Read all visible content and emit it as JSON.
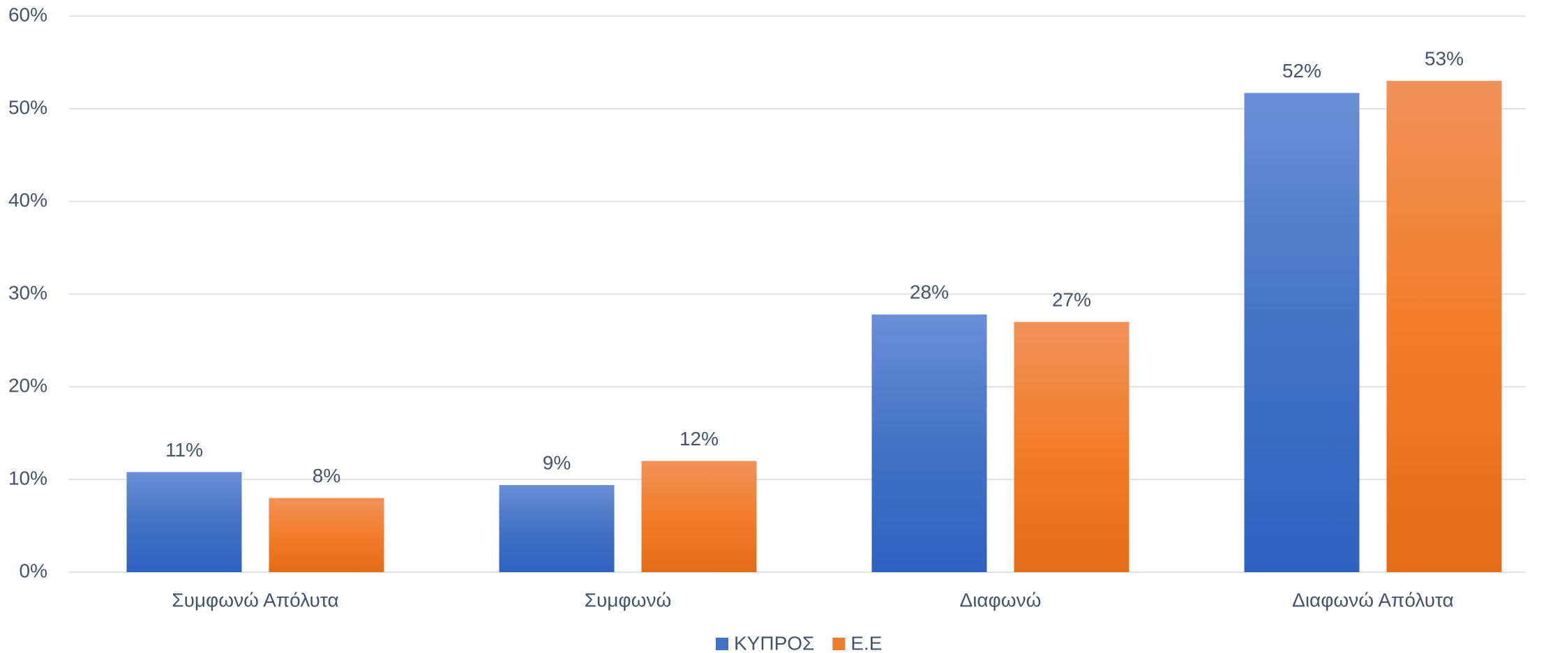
{
  "chart_data": {
    "type": "bar",
    "categories": [
      "Συμφωνώ Απόλυτα",
      "Συμφωνώ",
      "Διαφωνώ",
      "Διαφωνώ Απόλυτα"
    ],
    "series": [
      {
        "name": "ΚΥΠΡΟΣ",
        "color": "#4472c4",
        "values": [
          10.8,
          9.4,
          27.8,
          51.7
        ],
        "value_labels": [
          "11%",
          "9%",
          "28%",
          "52%"
        ]
      },
      {
        "name": "Ε.Ε",
        "color": "#ed7d31",
        "values": [
          8.0,
          12.0,
          27.0,
          53.0
        ],
        "value_labels": [
          "8%",
          "12%",
          "27%",
          "53%"
        ]
      }
    ],
    "ylim": [
      0,
      60
    ],
    "yticks": [
      {
        "value": 0,
        "label": "0%"
      },
      {
        "value": 10,
        "label": "10%"
      },
      {
        "value": 20,
        "label": "20%"
      },
      {
        "value": 30,
        "label": "30%"
      },
      {
        "value": 40,
        "label": "40%"
      },
      {
        "value": 50,
        "label": "50%"
      },
      {
        "value": 60,
        "label": "60%"
      }
    ],
    "grid": true,
    "legend": "bottom"
  }
}
